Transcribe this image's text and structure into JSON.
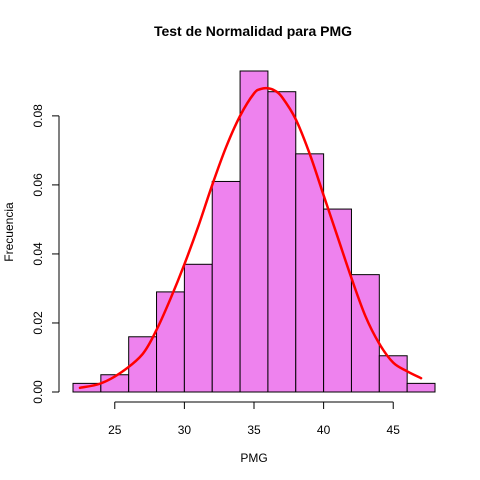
{
  "chart_data": {
    "type": "bar",
    "title": "Test de Normalidad para  PMG",
    "xlabel": "PMG",
    "ylabel": "Frecuencia",
    "xlim": [
      22,
      48
    ],
    "ylim": [
      0,
      0.093
    ],
    "x_ticks": [
      25,
      30,
      35,
      40,
      45
    ],
    "y_ticks": [
      0.0,
      0.02,
      0.04,
      0.06,
      0.08
    ],
    "x_tick_labels": [
      "25",
      "30",
      "35",
      "40",
      "45"
    ],
    "y_tick_labels": [
      "0.00",
      "0.02",
      "0.04",
      "0.06",
      "0.08"
    ],
    "bins": [
      {
        "from": 22,
        "to": 24,
        "density": 0.0025
      },
      {
        "from": 24,
        "to": 26,
        "density": 0.005
      },
      {
        "from": 26,
        "to": 28,
        "density": 0.016
      },
      {
        "from": 28,
        "to": 30,
        "density": 0.029
      },
      {
        "from": 30,
        "to": 32,
        "density": 0.037
      },
      {
        "from": 32,
        "to": 34,
        "density": 0.061
      },
      {
        "from": 34,
        "to": 36,
        "density": 0.093
      },
      {
        "from": 36,
        "to": 38,
        "density": 0.087
      },
      {
        "from": 38,
        "to": 40,
        "density": 0.069
      },
      {
        "from": 40,
        "to": 42,
        "density": 0.053
      },
      {
        "from": 42,
        "to": 44,
        "density": 0.034
      },
      {
        "from": 44,
        "to": 46,
        "density": 0.0105
      },
      {
        "from": 46,
        "to": 48,
        "density": 0.0025
      }
    ],
    "curve": {
      "x": [
        22.5,
        24,
        25.5,
        27,
        28,
        29,
        30,
        31,
        32,
        33,
        34,
        35,
        35.5,
        36,
        36.5,
        37,
        38,
        39,
        40,
        41,
        42,
        43,
        44,
        45,
        46,
        47
      ],
      "y": [
        0.0012,
        0.0025,
        0.0058,
        0.011,
        0.018,
        0.027,
        0.037,
        0.048,
        0.06,
        0.071,
        0.08,
        0.0865,
        0.0878,
        0.088,
        0.0873,
        0.0855,
        0.079,
        0.069,
        0.057,
        0.045,
        0.033,
        0.022,
        0.014,
        0.0085,
        0.006,
        0.004
      ]
    },
    "colors": {
      "bar_fill": "#ee82ee",
      "bar_stroke": "#000000",
      "curve": "#ff0000"
    },
    "grid": false,
    "legend": "none"
  }
}
